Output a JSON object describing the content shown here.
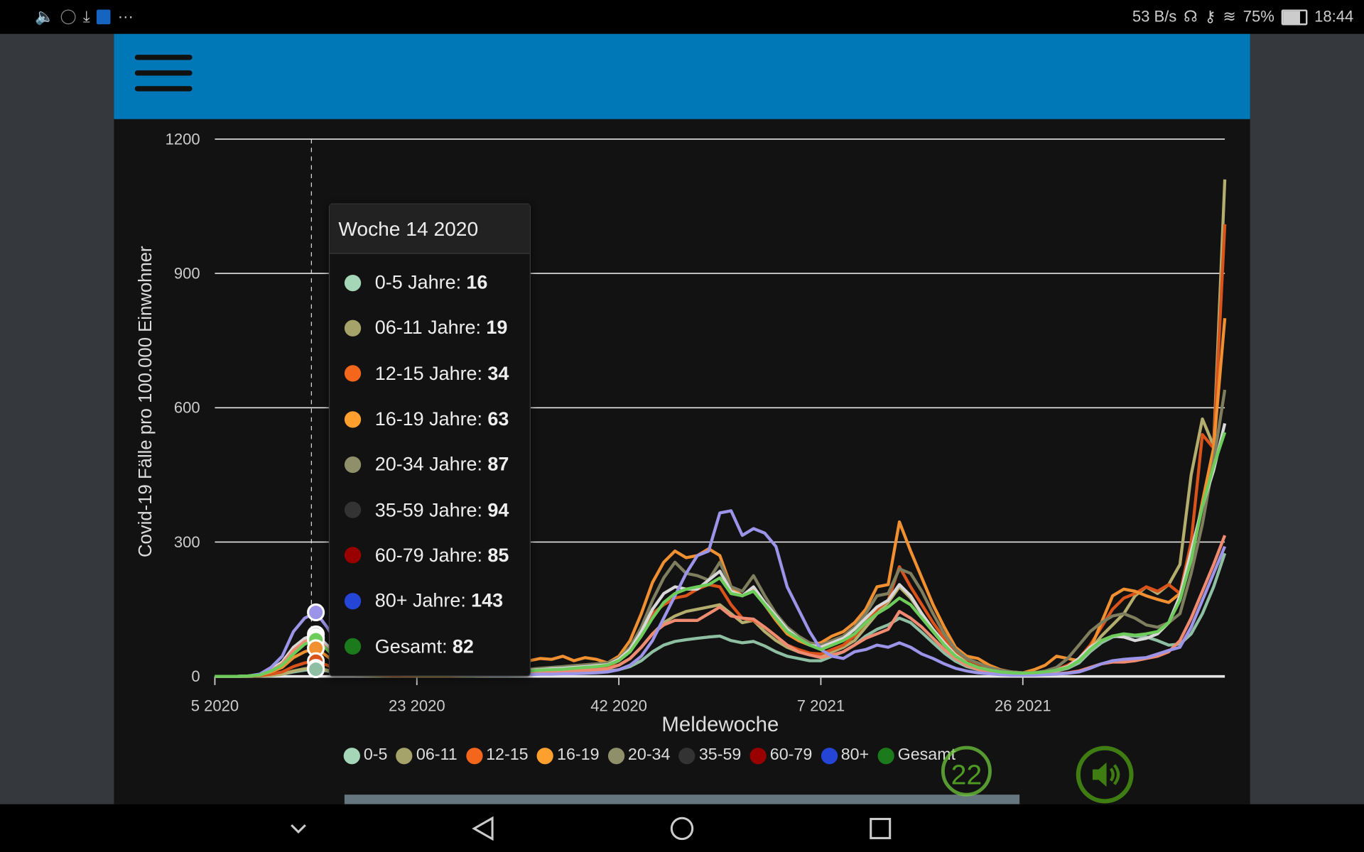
{
  "status_bar": {
    "network_speed": "53 B/s",
    "battery": "75%",
    "time": "18:44",
    "icons": [
      "volume-icon",
      "info-icon",
      "download-icon",
      "shield-icon",
      "more-icon",
      "headset-icon",
      "key-icon",
      "wifi-icon",
      "battery-icon"
    ]
  },
  "header": {
    "menu_icon": "hamburger-icon",
    "color": "#0077b6"
  },
  "tooltip": {
    "title": "Woche 14 2020",
    "rows": [
      {
        "label": "0-5 Jahre:",
        "value": "16",
        "color": "#a5d6b8"
      },
      {
        "label": "06-11 Jahre:",
        "value": "19",
        "color": "#a6a36a"
      },
      {
        "label": "12-15 Jahre:",
        "value": "34",
        "color": "#f4661b"
      },
      {
        "label": "16-19 Jahre:",
        "value": "63",
        "color": "#ffa02e"
      },
      {
        "label": "20-34 Jahre:",
        "value": "87",
        "color": "#8f8f6a"
      },
      {
        "label": "35-59 Jahre:",
        "value": "94",
        "color": "#333333"
      },
      {
        "label": "60-79 Jahre:",
        "value": "85",
        "color": "#990000"
      },
      {
        "label": "80+ Jahre:",
        "value": "143",
        "color": "#2445d6"
      },
      {
        "label": "Gesamt:",
        "value": "82",
        "color": "#1b7a1b"
      }
    ]
  },
  "badge": {
    "value": "22"
  },
  "sound_button": {
    "icon": "speaker-icon"
  },
  "navbar": {
    "icons": [
      "chevron-down-icon",
      "back-icon",
      "home-icon",
      "recents-icon"
    ]
  },
  "chart_data": {
    "type": "line",
    "xlabel": "Meldewoche",
    "ylabel": "Covid-19 Fälle pro 100.000 Einwohner",
    "ylim": [
      0,
      1200
    ],
    "yticks": [
      "0",
      "300",
      "600",
      "900",
      "1200"
    ],
    "yticks_values": [
      0,
      300,
      600,
      900,
      1200
    ],
    "x_tick_labels": [
      "5 2020",
      "23 2020",
      "42 2020",
      "7 2021",
      "26 2021"
    ],
    "x_tick_every": 18,
    "grid": true,
    "legend": "bottom",
    "highlighted_week": "14 2020",
    "highlighted_index": 9,
    "series": [
      {
        "name": "0-5",
        "legend_color": "#a5d6b8",
        "line_color": "#8fbfa3",
        "values": [
          0,
          0,
          0,
          0,
          1,
          2,
          5,
          10,
          14,
          16,
          12,
          7,
          4,
          3,
          2,
          1,
          1,
          1,
          1,
          1,
          1,
          1,
          1,
          1,
          2,
          2,
          2,
          3,
          4,
          5,
          6,
          7,
          8,
          9,
          10,
          12,
          15,
          22,
          35,
          55,
          70,
          78,
          82,
          85,
          88,
          90,
          80,
          75,
          78,
          68,
          55,
          45,
          40,
          35,
          35,
          45,
          55,
          70,
          90,
          105,
          115,
          130,
          120,
          98,
          75,
          52,
          34,
          22,
          15,
          10,
          7,
          6,
          5,
          6,
          8,
          12,
          18,
          30,
          55,
          75,
          88,
          92,
          90,
          88,
          80,
          70,
          72,
          95,
          140,
          200,
          275
        ]
      },
      {
        "name": "06-11",
        "legend_color": "#a6a36a",
        "line_color": "#b4ae6e",
        "values": [
          0,
          0,
          0,
          0,
          1,
          2,
          5,
          12,
          17,
          19,
          14,
          8,
          5,
          3,
          2,
          1,
          1,
          1,
          1,
          1,
          1,
          1,
          1,
          2,
          2,
          3,
          3,
          5,
          6,
          8,
          9,
          10,
          12,
          13,
          15,
          18,
          25,
          40,
          65,
          95,
          120,
          135,
          145,
          150,
          155,
          160,
          140,
          120,
          125,
          100,
          80,
          65,
          55,
          50,
          45,
          55,
          65,
          80,
          110,
          140,
          165,
          200,
          175,
          140,
          105,
          75,
          48,
          30,
          20,
          13,
          9,
          7,
          6,
          8,
          10,
          14,
          22,
          35,
          60,
          90,
          115,
          140,
          180,
          200,
          185,
          205,
          250,
          450,
          575,
          515,
          1110
        ]
      },
      {
        "name": "12-15",
        "legend_color": "#f4661b",
        "line_color": "#d9531a",
        "values": [
          0,
          0,
          0,
          1,
          2,
          5,
          10,
          22,
          30,
          34,
          25,
          14,
          8,
          5,
          4,
          3,
          2,
          2,
          2,
          2,
          2,
          2,
          3,
          3,
          4,
          5,
          6,
          8,
          10,
          12,
          14,
          15,
          16,
          18,
          20,
          22,
          35,
          60,
          100,
          140,
          160,
          175,
          180,
          195,
          205,
          200,
          160,
          130,
          125,
          110,
          90,
          70,
          60,
          52,
          50,
          60,
          70,
          90,
          120,
          150,
          170,
          245,
          200,
          160,
          120,
          85,
          55,
          38,
          28,
          20,
          14,
          10,
          8,
          8,
          10,
          15,
          25,
          40,
          70,
          110,
          150,
          175,
          185,
          200,
          190,
          205,
          185,
          300,
          540,
          510,
          1010
        ]
      },
      {
        "name": "16-19",
        "legend_color": "#ffa02e",
        "line_color": "#f09030",
        "values": [
          0,
          0,
          0,
          1,
          3,
          10,
          20,
          42,
          55,
          63,
          45,
          25,
          15,
          10,
          8,
          6,
          5,
          5,
          5,
          6,
          7,
          8,
          10,
          12,
          15,
          18,
          22,
          28,
          35,
          40,
          38,
          45,
          35,
          42,
          38,
          30,
          45,
          80,
          140,
          210,
          255,
          280,
          265,
          270,
          285,
          270,
          200,
          180,
          195,
          160,
          125,
          95,
          80,
          70,
          75,
          90,
          100,
          120,
          150,
          200,
          205,
          345,
          280,
          220,
          160,
          110,
          65,
          45,
          40,
          25,
          15,
          10,
          8,
          15,
          25,
          45,
          40,
          35,
          60,
          120,
          180,
          195,
          190,
          180,
          172,
          165,
          185,
          260,
          390,
          510,
          800
        ]
      },
      {
        "name": "20-34",
        "legend_color": "#8f8f6a",
        "line_color": "#7f7f60",
        "values": [
          0,
          0,
          0,
          1,
          4,
          15,
          30,
          60,
          80,
          87,
          65,
          38,
          22,
          15,
          10,
          8,
          6,
          5,
          5,
          5,
          5,
          6,
          7,
          8,
          9,
          10,
          12,
          14,
          16,
          18,
          20,
          22,
          24,
          26,
          28,
          30,
          40,
          65,
          110,
          170,
          220,
          255,
          230,
          225,
          215,
          255,
          200,
          190,
          225,
          180,
          140,
          110,
          90,
          75,
          70,
          80,
          90,
          110,
          140,
          180,
          185,
          240,
          230,
          190,
          140,
          95,
          60,
          40,
          30,
          20,
          14,
          10,
          8,
          8,
          12,
          20,
          40,
          70,
          100,
          120,
          135,
          140,
          130,
          115,
          110,
          120,
          140,
          230,
          340,
          480,
          640
        ]
      },
      {
        "name": "35-59",
        "legend_color": "#333333",
        "line_color": "#d8d8d8",
        "values": [
          0,
          0,
          0,
          1,
          4,
          15,
          32,
          65,
          85,
          94,
          70,
          40,
          24,
          15,
          10,
          8,
          6,
          5,
          5,
          5,
          5,
          5,
          6,
          7,
          8,
          9,
          10,
          12,
          14,
          15,
          17,
          18,
          20,
          22,
          24,
          26,
          38,
          60,
          100,
          150,
          185,
          200,
          195,
          195,
          215,
          235,
          190,
          180,
          200,
          165,
          135,
          105,
          85,
          70,
          65,
          75,
          85,
          105,
          130,
          155,
          170,
          205,
          180,
          140,
          105,
          75,
          48,
          30,
          20,
          14,
          10,
          8,
          7,
          6,
          9,
          14,
          22,
          40,
          65,
          80,
          90,
          88,
          80,
          85,
          95,
          120,
          180,
          280,
          380,
          460,
          565
        ]
      },
      {
        "name": "60-79",
        "legend_color": "#990000",
        "line_color": "#f08a70",
        "values": [
          0,
          0,
          0,
          1,
          3,
          12,
          28,
          58,
          78,
          85,
          62,
          35,
          20,
          12,
          8,
          6,
          4,
          3,
          3,
          3,
          3,
          3,
          3,
          4,
          5,
          6,
          7,
          8,
          9,
          10,
          11,
          12,
          13,
          14,
          15,
          17,
          25,
          40,
          65,
          95,
          115,
          125,
          125,
          125,
          140,
          155,
          135,
          130,
          128,
          110,
          90,
          70,
          55,
          48,
          42,
          48,
          55,
          70,
          85,
          95,
          105,
          145,
          130,
          110,
          85,
          60,
          40,
          25,
          16,
          10,
          7,
          5,
          4,
          4,
          5,
          6,
          8,
          12,
          20,
          28,
          32,
          32,
          35,
          40,
          45,
          55,
          80,
          130,
          190,
          250,
          315
        ]
      },
      {
        "name": "80+",
        "legend_color": "#2445d6",
        "line_color": "#9c94e8",
        "values": [
          0,
          0,
          0,
          1,
          5,
          20,
          45,
          100,
          130,
          143,
          110,
          70,
          40,
          25,
          15,
          10,
          7,
          5,
          4,
          3,
          3,
          3,
          3,
          3,
          3,
          3,
          3,
          4,
          4,
          5,
          5,
          6,
          6,
          7,
          8,
          10,
          15,
          25,
          45,
          80,
          130,
          180,
          230,
          270,
          280,
          365,
          370,
          315,
          330,
          320,
          290,
          200,
          150,
          100,
          60,
          45,
          40,
          55,
          60,
          70,
          65,
          75,
          65,
          50,
          40,
          28,
          18,
          12,
          8,
          6,
          4,
          3,
          3,
          3,
          4,
          5,
          7,
          10,
          18,
          28,
          35,
          38,
          40,
          42,
          50,
          58,
          65,
          110,
          170,
          230,
          290
        ]
      },
      {
        "name": "Gesamt",
        "legend_color": "#1b7a1b",
        "line_color": "#6dcc5a",
        "values": [
          0,
          0,
          0,
          1,
          3,
          12,
          25,
          50,
          72,
          82,
          60,
          35,
          22,
          15,
          10,
          7,
          5,
          4,
          3,
          3,
          3,
          3,
          4,
          5,
          6,
          7,
          8,
          10,
          12,
          14,
          15,
          16,
          18,
          20,
          22,
          25,
          35,
          55,
          90,
          130,
          165,
          185,
          195,
          200,
          205,
          220,
          185,
          180,
          190,
          160,
          130,
          100,
          85,
          70,
          60,
          70,
          80,
          95,
          120,
          140,
          155,
          175,
          160,
          130,
          100,
          70,
          45,
          30,
          20,
          14,
          10,
          8,
          7,
          8,
          10,
          14,
          20,
          35,
          60,
          80,
          90,
          95,
          92,
          95,
          100,
          120,
          170,
          260,
          380,
          470,
          545
        ]
      }
    ]
  }
}
